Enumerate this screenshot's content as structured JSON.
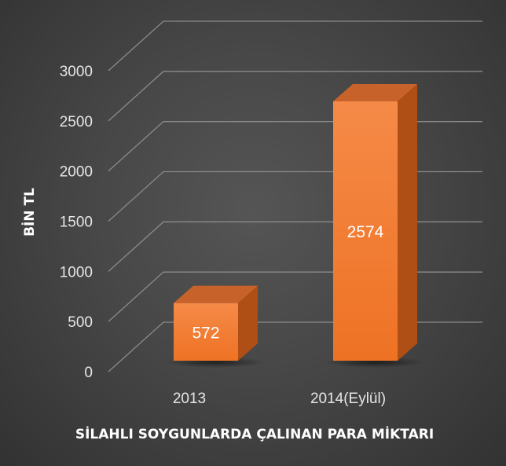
{
  "chart_data": {
    "type": "bar",
    "categories": [
      "2013",
      "2014(Eylül)"
    ],
    "values": [
      572,
      2574
    ],
    "data_labels": [
      "572",
      "2574"
    ],
    "xlabel": "SİLAHLI SOYGUNLARDA ÇALINAN PARA MİKTARI",
    "ylabel": "BİN TL",
    "ylim": [
      0,
      3000
    ],
    "yticks": [
      0,
      500,
      1000,
      1500,
      2000,
      2500,
      3000
    ],
    "ytick_labels": [
      "0",
      "500",
      "1000",
      "1500",
      "2000",
      "2500",
      "3000"
    ],
    "grid": true,
    "style": "3d-column",
    "colors": {
      "bar_front": "#f2792f",
      "bar_side": "#b04f15",
      "bar_top": "#c7632a",
      "grid": "#8a8a8a"
    }
  }
}
